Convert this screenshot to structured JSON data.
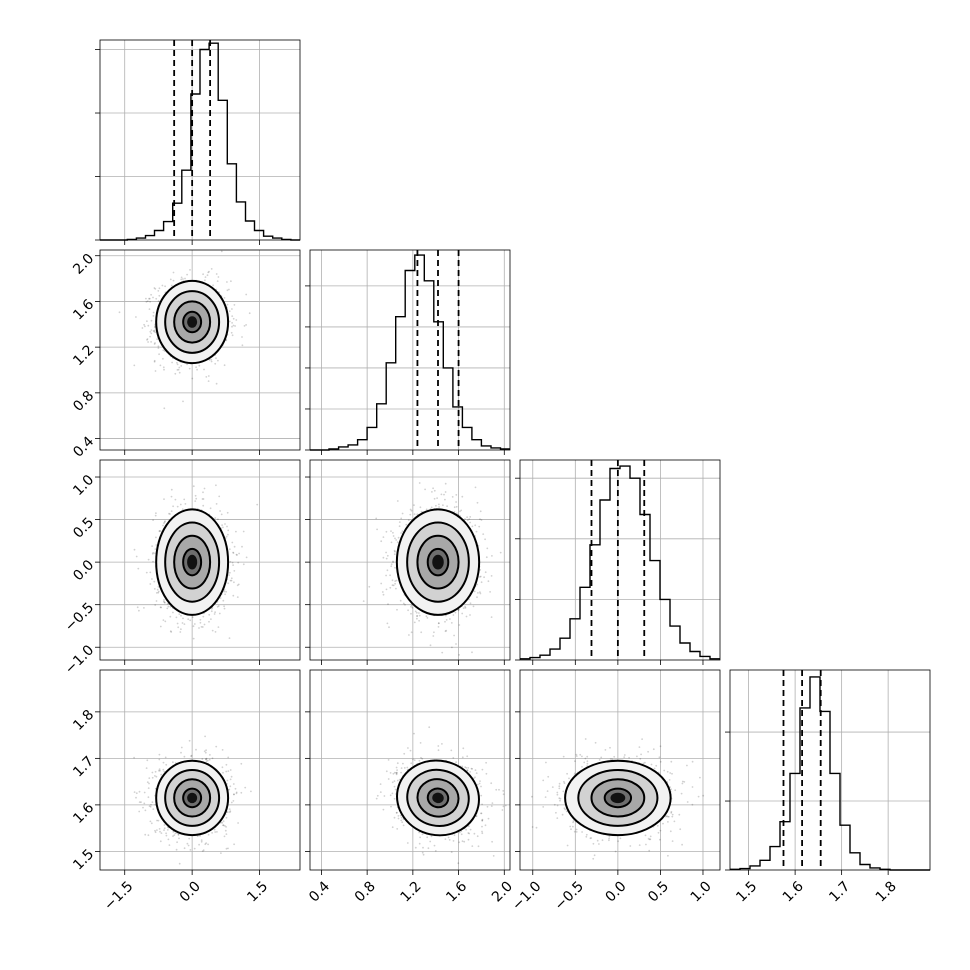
{
  "chart_data": {
    "type": "corner",
    "title": "",
    "parameters": [
      {
        "index": 0,
        "median": 0.0,
        "q16": -0.4,
        "q84": 0.4,
        "sigma": 0.4,
        "range": [
          -2.05,
          2.4
        ],
        "ticks": [
          -1.5,
          0.0,
          1.5
        ],
        "tick_labels": [
          "−1.5",
          "0.0",
          "1.5"
        ]
      },
      {
        "index": 1,
        "median": 1.42,
        "q16": 1.24,
        "q84": 1.6,
        "sigma": 0.18,
        "range": [
          0.3,
          2.05
        ],
        "ticks": [
          0.4,
          0.8,
          1.2,
          1.6,
          2.0
        ],
        "tick_labels": [
          "0.4",
          "0.8",
          "1.2",
          "1.6",
          "2.0"
        ]
      },
      {
        "index": 2,
        "median": 0.0,
        "q16": -0.31,
        "q84": 0.31,
        "sigma": 0.31,
        "range": [
          -1.15,
          1.2
        ],
        "ticks": [
          -1.0,
          -0.5,
          0.0,
          0.5,
          1.0
        ],
        "tick_labels": [
          "−1.0",
          "−0.5",
          "0.0",
          "0.5",
          "1.0"
        ]
      },
      {
        "index": 3,
        "median": 1.615,
        "q16": 1.575,
        "q84": 1.655,
        "sigma": 0.04,
        "range": [
          1.46,
          1.89
        ],
        "ticks": [
          1.5,
          1.6,
          1.7,
          1.8
        ],
        "tick_labels": [
          "1.5",
          "1.6",
          "1.7",
          "1.8"
        ]
      }
    ],
    "histograms": [
      {
        "param": 0,
        "bins_lo": -2.05,
        "bins_hi": 2.4,
        "counts": [
          0,
          0,
          0,
          1,
          3,
          7,
          15,
          29,
          58,
          110,
          230,
          300,
          310,
          220,
          120,
          60,
          30,
          15,
          6,
          3,
          1,
          0
        ]
      },
      {
        "param": 1,
        "bins_lo": 0.3,
        "bins_hi": 2.05,
        "counts": [
          0,
          0,
          1,
          3,
          5,
          10,
          22,
          45,
          85,
          130,
          175,
          190,
          165,
          125,
          80,
          42,
          22,
          10,
          4,
          2,
          1
        ]
      },
      {
        "param": 2,
        "bins_lo": -1.15,
        "bins_hi": 1.2,
        "counts": [
          1,
          2,
          4,
          9,
          18,
          34,
          60,
          95,
          132,
          158,
          160,
          150,
          120,
          82,
          50,
          28,
          14,
          7,
          3,
          1
        ]
      },
      {
        "param": 3,
        "bins_lo": 1.46,
        "bins_hi": 1.89,
        "counts": [
          1,
          2,
          6,
          14,
          34,
          70,
          140,
          235,
          280,
          230,
          140,
          65,
          25,
          8,
          3,
          1,
          0,
          0,
          0,
          0
        ]
      }
    ],
    "histogram_yticks": [
      {
        "param": 0,
        "ticks": [
          100,
          200,
          300
        ],
        "max": 315
      },
      {
        "param": 1,
        "ticks": [
          40,
          80,
          120,
          160
        ],
        "max": 195
      },
      {
        "param": 2,
        "ticks": [
          50,
          100,
          150
        ],
        "max": 165
      },
      {
        "param": 3,
        "ticks": [
          100,
          200
        ],
        "max": 290
      }
    ],
    "pairs": [
      {
        "x": 0,
        "y": 1,
        "rho": 0.0
      },
      {
        "x": 0,
        "y": 2,
        "rho": 0.0
      },
      {
        "x": 1,
        "y": 2,
        "rho": 0.0
      },
      {
        "x": 0,
        "y": 3,
        "rho": 0.0
      },
      {
        "x": 1,
        "y": 3,
        "rho": -0.1
      },
      {
        "x": 2,
        "y": 3,
        "rho": 0.0
      }
    ],
    "contour_levels_sigma": [
      0.5,
      1.0,
      1.5,
      2.0
    ],
    "quantiles": [
      0.16,
      0.5,
      0.84
    ],
    "grid": true,
    "legend": "none"
  }
}
